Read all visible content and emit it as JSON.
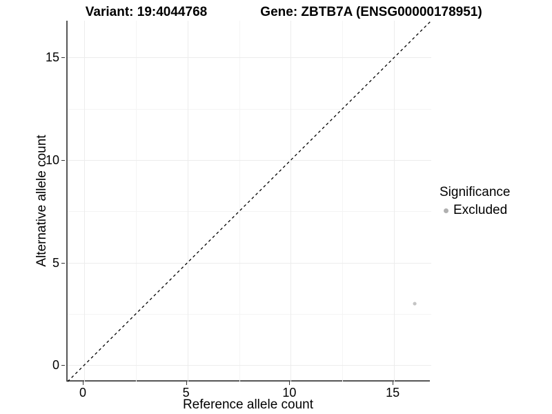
{
  "titles": {
    "variant": "Variant: 19:4044768",
    "gene": "Gene: ZBTB7A (ENSG00000178951)"
  },
  "chart_data": {
    "type": "scatter",
    "xlabel": "Reference allele count",
    "ylabel": "Alternative allele count",
    "xlim": [
      -0.8,
      16.8
    ],
    "ylim": [
      -0.8,
      16.8
    ],
    "x_ticks": [
      0,
      5,
      10,
      15
    ],
    "y_ticks": [
      0,
      5,
      10,
      15
    ],
    "x_minor_ticks": [
      2.5,
      7.5,
      12.5
    ],
    "y_minor_ticks": [
      2.5,
      7.5,
      12.5
    ],
    "grid": "major+minor",
    "series": [
      {
        "name": "Excluded",
        "points": [
          {
            "x": 16,
            "y": 3
          }
        ],
        "color": "#c4c4c4",
        "point_radius": 2.6
      }
    ],
    "reference_line": {
      "slope": 1,
      "intercept": 0,
      "style": "dashed",
      "color": "#000000",
      "dash": "4,4",
      "width": 1.3
    },
    "legend": {
      "title": "Significance",
      "position": "right",
      "items": [
        {
          "label": "Excluded",
          "color": "#b0b0b0"
        }
      ]
    },
    "colors": {
      "axis_line": "#555555",
      "tick_mark": "#333333",
      "grid_major": "#ececec",
      "grid_minor": "#f4f4f4",
      "background": "#ffffff"
    }
  }
}
